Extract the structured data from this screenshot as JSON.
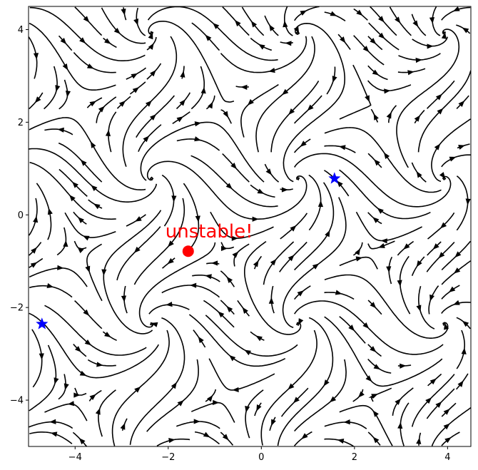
{
  "chart_data": {
    "type": "streamplot",
    "title": "",
    "xlabel": "",
    "ylabel": "",
    "xlim": [
      -5,
      4.5
    ],
    "ylim": [
      -5,
      4.5
    ],
    "xticks": [
      {
        "value": -4,
        "label": "−4"
      },
      {
        "value": -2,
        "label": "−2"
      },
      {
        "value": 0,
        "label": "0"
      },
      {
        "value": 2,
        "label": "2"
      },
      {
        "value": 4,
        "label": "4"
      }
    ],
    "yticks": [
      {
        "value": 4,
        "label": "4"
      },
      {
        "value": 2,
        "label": "2"
      },
      {
        "value": 0,
        "label": "0"
      },
      {
        "value": -2,
        "label": "−2"
      },
      {
        "value": -4,
        "label": "−4"
      }
    ],
    "grid": false,
    "stream_color": "#000000",
    "stable_points": {
      "marker": "star",
      "color": "#0000ff",
      "points": [
        {
          "x": 1.571,
          "y": 0.785
        },
        {
          "x": -4.712,
          "y": -2.356
        }
      ]
    },
    "unstable_point": {
      "marker": "circle",
      "color": "#ff0000",
      "x": -1.571,
      "y": -0.785
    },
    "annotation": {
      "text": "unstable!",
      "x": -1.571,
      "y": -0.785,
      "color": "#ff0000"
    }
  }
}
